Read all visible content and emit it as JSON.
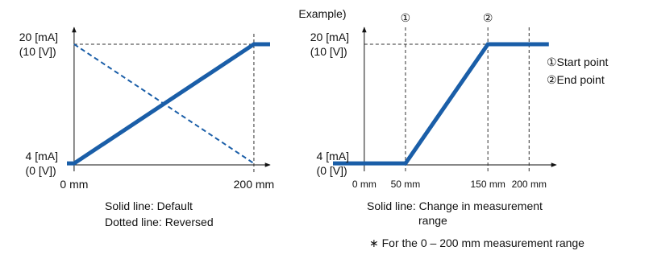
{
  "title": "Example)",
  "footnote": "∗ For the 0 – 200 mm measurement range",
  "chart_data": [
    {
      "type": "line",
      "xlim": [
        -8,
        218
      ],
      "ylim": [
        3.8,
        21.4
      ],
      "xticks": [
        {
          "value": 0,
          "label": "0 mm"
        },
        {
          "value": 200,
          "label": "200 mm"
        }
      ],
      "yticks": [
        {
          "value": 4,
          "label": "4 [mA]\n(0 [V])"
        },
        {
          "value": 20,
          "label": "20 [mA]\n(10 [V])"
        }
      ],
      "series": [
        {
          "color": "#1a5ea8",
          "style": "solid",
          "x": [
            -8,
            0,
            200,
            218
          ],
          "values": [
            4,
            4,
            20,
            20
          ]
        },
        {
          "color": "#1a5ea8",
          "style": "dashed",
          "x": [
            0,
            200
          ],
          "values": [
            20,
            4
          ]
        }
      ],
      "notes": [
        "Solid line: Default",
        "Dotted line: Reversed"
      ]
    },
    {
      "type": "line",
      "xlim": [
        -38,
        233
      ],
      "ylim": [
        3.8,
        21.4
      ],
      "xticks": [
        {
          "value": 0,
          "label": "0 mm"
        },
        {
          "value": 50,
          "label": "50 mm"
        },
        {
          "value": 150,
          "label": "150 mm"
        },
        {
          "value": 200,
          "label": "200 mm"
        }
      ],
      "yticks": [
        {
          "value": 4,
          "label": "4 [mA]\n(0 [V])"
        },
        {
          "value": 20,
          "label": "20 [mA]\n(10 [V])"
        }
      ],
      "series": [
        {
          "color": "#1a5ea8",
          "style": "solid",
          "x": [
            -38,
            50,
            150,
            224
          ],
          "values": [
            4,
            4,
            20,
            20
          ]
        }
      ],
      "markers": [
        {
          "x": 50,
          "label": "①"
        },
        {
          "x": 150,
          "label": "②"
        }
      ],
      "annotations": [
        "①Start point",
        "②End point"
      ],
      "notes": [
        "Solid line: Change in measurement range"
      ]
    }
  ]
}
